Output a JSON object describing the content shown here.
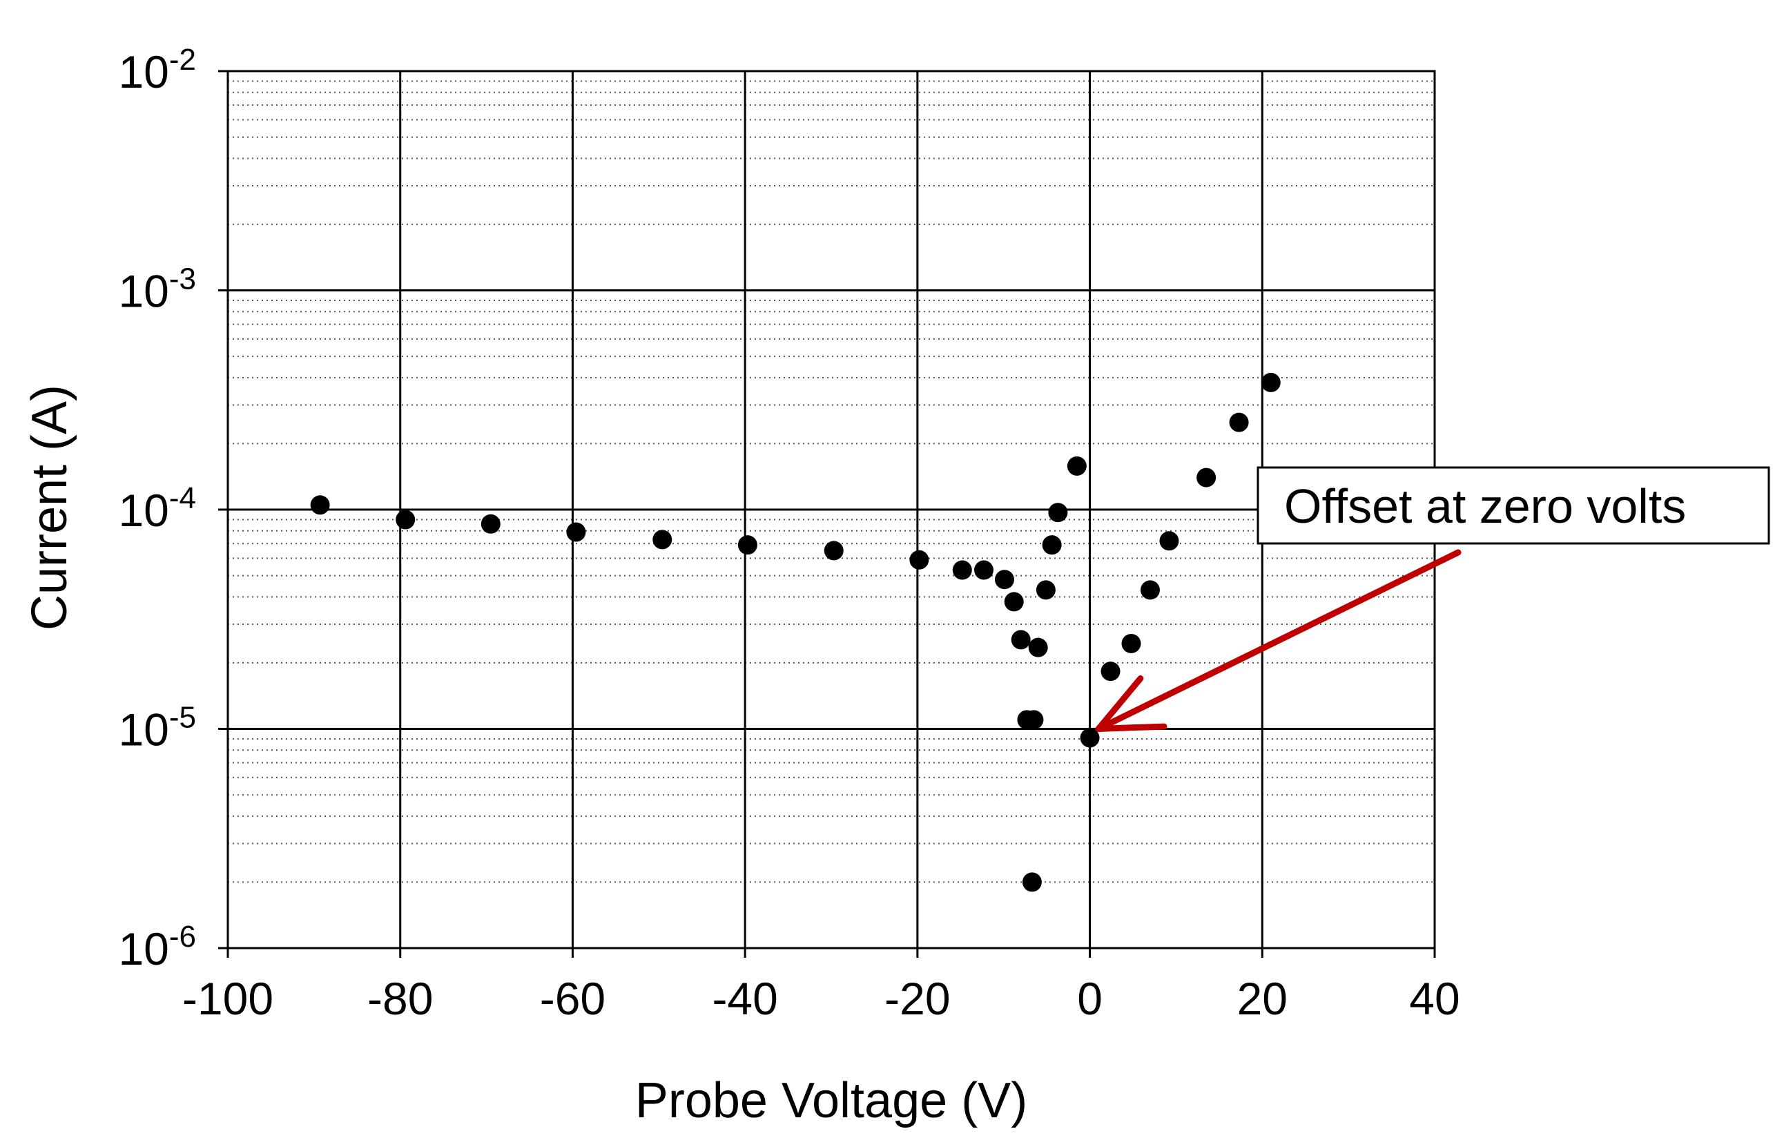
{
  "chart_data": {
    "type": "scatter",
    "xlabel": "Probe Voltage (V)",
    "ylabel": "Current (A)",
    "xlim": [
      -100,
      40
    ],
    "ylim": [
      1e-06,
      0.01
    ],
    "yscale": "log",
    "x_ticks": [
      -100,
      -80,
      -60,
      -40,
      -20,
      0,
      20,
      40
    ],
    "x_tick_labels": [
      "-100",
      "-80",
      "-60",
      "-40",
      "-20",
      "0",
      "20",
      "40"
    ],
    "y_ticks": [
      {
        "value": 1e-06,
        "base": "10",
        "exp": "-6"
      },
      {
        "value": 1e-05,
        "base": "10",
        "exp": "-5"
      },
      {
        "value": 0.0001,
        "base": "10",
        "exp": "-4"
      },
      {
        "value": 0.001,
        "base": "10",
        "exp": "-3"
      },
      {
        "value": 0.01,
        "base": "10",
        "exp": "-2"
      }
    ],
    "grid": {
      "major": true,
      "minor_dotted": true
    },
    "marker_color": "#000000",
    "series": [
      {
        "x": [
          -89.3,
          -79.4,
          -69.5,
          -59.6,
          -49.6,
          -39.7,
          -29.7,
          -19.8,
          -14.8,
          -12.3,
          -9.9,
          -8.8,
          -8.0,
          -7.3,
          -6.7,
          -6.5,
          -6.0,
          -5.1,
          -4.4,
          -3.7,
          -1.5,
          0.0,
          2.4,
          4.8,
          7.0,
          9.2,
          13.5,
          17.3,
          21.0
        ],
        "y": [
          0.000105,
          9e-05,
          8.6e-05,
          7.9e-05,
          7.3e-05,
          6.9e-05,
          6.5e-05,
          5.9e-05,
          5.3e-05,
          5.3e-05,
          4.8e-05,
          3.8e-05,
          2.55e-05,
          1.1e-05,
          2e-06,
          1.1e-05,
          2.35e-05,
          4.3e-05,
          6.9e-05,
          9.7e-05,
          0.000158,
          9.1e-06,
          1.83e-05,
          2.45e-05,
          4.3e-05,
          7.2e-05,
          0.00014,
          0.00025,
          0.00038
        ]
      }
    ],
    "annotations": [
      {
        "text": "Offset at zero volts",
        "arrow_color": "#c00000",
        "target": {
          "x": 1.0,
          "y": 1e-05
        }
      }
    ]
  }
}
